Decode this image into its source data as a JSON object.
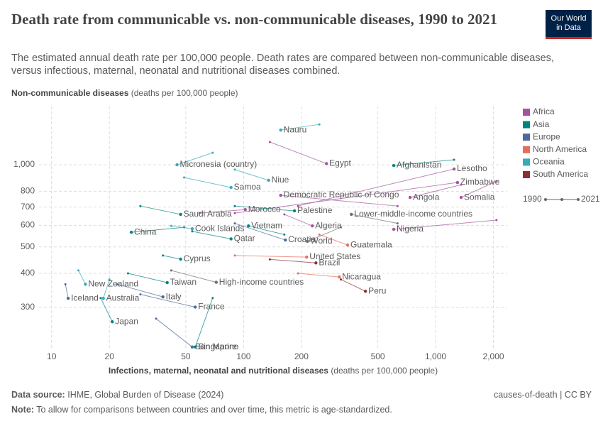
{
  "chart_data": {
    "type": "connected-scatter",
    "title": "Death rate from communicable vs. non-communicable diseases, 1990 to 2021",
    "subtitle": "The estimated annual death rate per 100,000 people. Death rates are compared between non-communicable diseases, versus infectious, maternal, neonatal and nutritional diseases combined.",
    "logo": [
      "Our World",
      "in Data"
    ],
    "ylabel": "Non-communicable diseases",
    "ylabel_unit": "(deaths per 100,000 people)",
    "xlabel": "Infections, maternal, neonatal and nutritional diseases",
    "xlabel_unit": "(deaths per 100,000 people)",
    "xscale": "log",
    "yscale": "log",
    "grid": true,
    "xlim": [
      8.6,
      2360
    ],
    "ylim": [
      207,
      1635
    ],
    "xticks": [
      10,
      20,
      50,
      100,
      200,
      500,
      {
        "value": 1000,
        "label": "1,000"
      },
      {
        "value": 2000,
        "label": "2,000"
      }
    ],
    "yticks": [
      300,
      400,
      500,
      600,
      700,
      800,
      {
        "value": 1000,
        "label": "1,000"
      }
    ],
    "legend_position": "right",
    "legend": [
      {
        "name": "Africa",
        "color": "#a2559c"
      },
      {
        "name": "Asia",
        "color": "#00847e"
      },
      {
        "name": "Europe",
        "color": "#4c6a9c"
      },
      {
        "name": "North America",
        "color": "#e56e5a"
      },
      {
        "name": "Oceania",
        "color": "#38aaba"
      },
      {
        "name": "South America",
        "color": "#883039"
      }
    ],
    "time_legend": [
      1990,
      2021
    ],
    "series": [
      {
        "name": "Nauru",
        "color": "#38aaba",
        "x": [
          248,
          156
        ],
        "y": [
          1406,
          1340
        ]
      },
      {
        "name": "Micronesia (country)",
        "color": "#38aaba",
        "x": [
          69,
          45
        ],
        "y": [
          1107,
          1000
        ]
      },
      {
        "name": "Egypt",
        "color": "#a2559c",
        "x": [
          137,
          270
        ],
        "y": [
          1212,
          1010
        ]
      },
      {
        "name": "Afghanistan",
        "color": "#00847e",
        "x": [
          1247,
          605
        ],
        "y": [
          1043,
          994
        ]
      },
      {
        "name": "Lesotho",
        "color": "#a2559c",
        "x": [
          192,
          1247
        ],
        "y": [
          706,
          965
        ]
      },
      {
        "name": "Zimbabwe",
        "color": "#a2559c",
        "x": [
          90,
          1300
        ],
        "y": [
          665,
          861
        ]
      },
      {
        "name": "Somalia",
        "color": "#a2559c",
        "x": [
          2075,
          1358
        ],
        "y": [
          871,
          759
        ]
      },
      {
        "name": "Niue",
        "color": "#38aaba",
        "x": [
          90,
          135
        ],
        "y": [
          960,
          877
        ]
      },
      {
        "name": "Samoa",
        "color": "#38aaba",
        "x": [
          49,
          86
        ],
        "y": [
          898,
          826
        ]
      },
      {
        "name": "Democratic Republic of Congo",
        "color": "#a2559c",
        "x": [
          633,
          156
        ],
        "y": [
          706,
          773
        ]
      },
      {
        "name": "Angola",
        "color": "#a2559c",
        "x": [
          1358,
          736
        ],
        "y": [
          845,
          759
        ]
      },
      {
        "name": "Lower-middle-income countries",
        "color": "#6e6e6e",
        "x": [
          633,
          364
        ],
        "y": [
          610,
          658
        ]
      },
      {
        "name": "Morocco",
        "color": "#a2559c",
        "x": [
          59,
          102
        ],
        "y": [
          665,
          685
        ]
      },
      {
        "name": "Palestine",
        "color": "#00847e",
        "x": [
          90,
          184
        ],
        "y": [
          706,
          678
        ]
      },
      {
        "name": "Saudi Arabia",
        "color": "#00847e",
        "x": [
          29,
          47
        ],
        "y": [
          706,
          658
        ]
      },
      {
        "name": "Algeria",
        "color": "#a2559c",
        "x": [
          163,
          228
        ],
        "y": [
          658,
          597
        ]
      },
      {
        "name": "Nigeria",
        "color": "#a2559c",
        "x": [
          2075,
          605
        ],
        "y": [
          627,
          580
        ]
      },
      {
        "name": "Vietnam",
        "color": "#00847e",
        "x": [
          163,
          106
        ],
        "y": [
          555,
          597
        ]
      },
      {
        "name": "China",
        "color": "#00847e",
        "x": [
          49,
          26
        ],
        "y": [
          590,
          566
        ]
      },
      {
        "name": "Cook Islands",
        "color": "#38aaba",
        "x": [
          42,
          54
        ],
        "y": [
          597,
          583
        ]
      },
      {
        "name": "Qatar",
        "color": "#00847e",
        "x": [
          54,
          86
        ],
        "y": [
          570,
          535
        ]
      },
      {
        "name": "Croatia",
        "color": "#4c6a9c",
        "x": [
          90,
          165
        ],
        "y": [
          610,
          530
        ]
      },
      {
        "name": "World",
        "color": "#6e6e6e",
        "x": [
          321,
          215
        ],
        "y": [
          590,
          524
        ]
      },
      {
        "name": "Guatemala",
        "color": "#e56e5a",
        "x": [
          248,
          348
        ],
        "y": [
          555,
          508
        ]
      },
      {
        "name": "United States",
        "color": "#e56e5a",
        "x": [
          90,
          213
        ],
        "y": [
          465,
          459
        ]
      },
      {
        "name": "Cyprus",
        "color": "#00847e",
        "x": [
          38,
          47
        ],
        "y": [
          465,
          451
        ]
      },
      {
        "name": "Brazil",
        "color": "#883039",
        "x": [
          137,
          238
        ],
        "y": [
          450,
          437
        ]
      },
      {
        "name": "Nicaragua",
        "color": "#e56e5a",
        "x": [
          192,
          315
        ],
        "y": [
          400,
          388
        ]
      },
      {
        "name": "Peru",
        "color": "#883039",
        "x": [
          321,
          431
        ],
        "y": [
          380,
          344
        ]
      },
      {
        "name": "High-income countries",
        "color": "#6e6e6e",
        "x": [
          42,
          72
        ],
        "y": [
          410,
          371
        ]
      },
      {
        "name": "New Zealand",
        "color": "#38aaba",
        "x": [
          13.8,
          15
        ],
        "y": [
          410,
          365
        ]
      },
      {
        "name": "Taiwan",
        "color": "#00847e",
        "x": [
          25,
          40
        ],
        "y": [
          400,
          370
        ]
      },
      {
        "name": "Italy",
        "color": "#4c6a9c",
        "x": [
          22,
          38
        ],
        "y": [
          365,
          328
        ]
      },
      {
        "name": "Iceland",
        "color": "#4c6a9c",
        "x": [
          11.8,
          12.2
        ],
        "y": [
          365,
          324
        ]
      },
      {
        "name": "Australia",
        "color": "#38aaba",
        "x": [
          20,
          18.6
        ],
        "y": [
          380,
          324
        ]
      },
      {
        "name": "France",
        "color": "#4c6a9c",
        "x": [
          29,
          56
        ],
        "y": [
          335,
          301
        ]
      },
      {
        "name": "Japan",
        "color": "#00847e",
        "x": [
          18,
          20.7
        ],
        "y": [
          325,
          266
        ]
      },
      {
        "name": "San Marino",
        "color": "#4c6a9c",
        "x": [
          35,
          54
        ],
        "y": [
          273,
          215
        ]
      },
      {
        "name": "Singapore",
        "color": "#00847e",
        "x": [
          69,
          56
        ],
        "y": [
          325,
          215
        ]
      }
    ],
    "source_label": "Data source:",
    "source": "IHME, Global Burden of Disease (2024)",
    "credit": "causes-of-death | CC BY",
    "note_label": "Note:",
    "note": "To allow for comparisons between countries and over time, this metric is age-standardized."
  }
}
